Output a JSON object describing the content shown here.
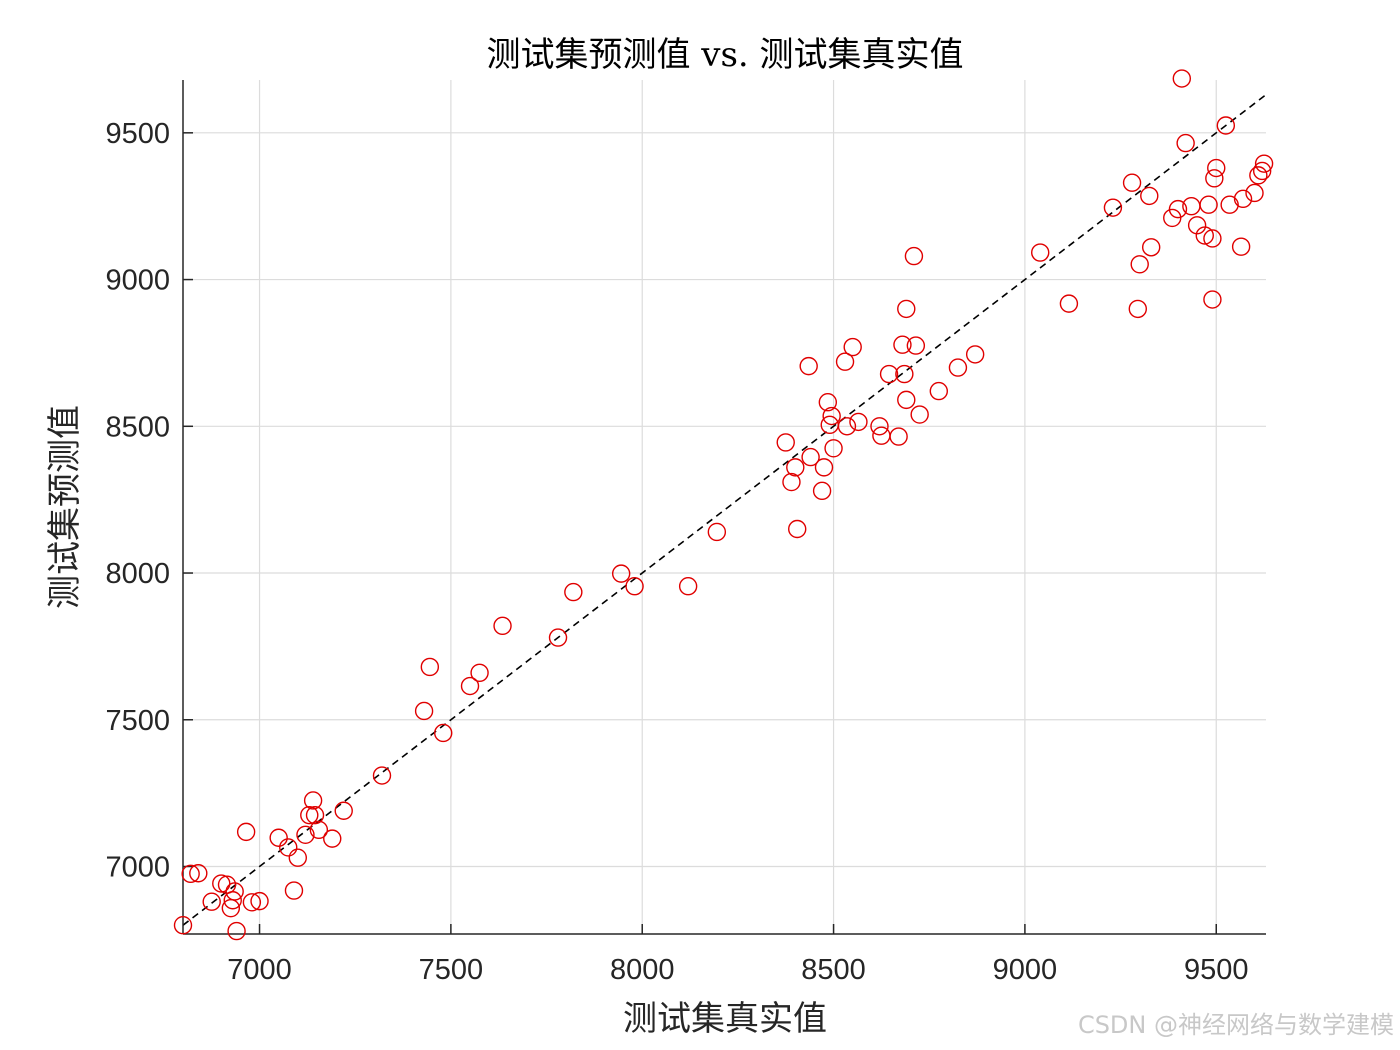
{
  "chart_data": {
    "type": "scatter",
    "title": "测试集预测值 vs. 测试集真实值",
    "xlabel": "测试集真实值",
    "ylabel": "测试集预测值",
    "xlim": [
      6800,
      9630
    ],
    "ylim": [
      6770,
      9680
    ],
    "x_ticks": [
      7000,
      7500,
      8000,
      8500,
      9000,
      9500
    ],
    "y_ticks": [
      7000,
      7500,
      8000,
      8500,
      9000,
      9500
    ],
    "grid": true,
    "reference_line": {
      "style": "dashed",
      "color": "#000000",
      "from": [
        6800,
        6800
      ],
      "to": [
        9630,
        9630
      ]
    },
    "series": [
      {
        "marker": "open-circle",
        "color": "#e00000",
        "points": [
          [
            6800,
            6800
          ],
          [
            6820,
            6975
          ],
          [
            6840,
            6977
          ],
          [
            6875,
            6880
          ],
          [
            6900,
            6942
          ],
          [
            6915,
            6938
          ],
          [
            6925,
            6858
          ],
          [
            6930,
            6885
          ],
          [
            6935,
            6915
          ],
          [
            6940,
            6780
          ],
          [
            6965,
            7118
          ],
          [
            6980,
            6878
          ],
          [
            7000,
            6882
          ],
          [
            7050,
            7098
          ],
          [
            7075,
            7065
          ],
          [
            7090,
            6918
          ],
          [
            7100,
            7030
          ],
          [
            7120,
            7108
          ],
          [
            7130,
            7175
          ],
          [
            7140,
            7225
          ],
          [
            7145,
            7175
          ],
          [
            7155,
            7125
          ],
          [
            7190,
            7095
          ],
          [
            7220,
            7190
          ],
          [
            7320,
            7310
          ],
          [
            7430,
            7530
          ],
          [
            7445,
            7680
          ],
          [
            7480,
            7455
          ],
          [
            7550,
            7615
          ],
          [
            7575,
            7660
          ],
          [
            7635,
            7820
          ],
          [
            7780,
            7780
          ],
          [
            7820,
            7935
          ],
          [
            7945,
            7998
          ],
          [
            7980,
            7955
          ],
          [
            8120,
            7955
          ],
          [
            8195,
            8140
          ],
          [
            8375,
            8445
          ],
          [
            8390,
            8310
          ],
          [
            8400,
            8360
          ],
          [
            8405,
            8150
          ],
          [
            8435,
            8705
          ],
          [
            8440,
            8395
          ],
          [
            8470,
            8280
          ],
          [
            8475,
            8360
          ],
          [
            8485,
            8582
          ],
          [
            8490,
            8505
          ],
          [
            8495,
            8535
          ],
          [
            8500,
            8425
          ],
          [
            8530,
            8720
          ],
          [
            8535,
            8500
          ],
          [
            8550,
            8770
          ],
          [
            8565,
            8515
          ],
          [
            8620,
            8500
          ],
          [
            8625,
            8468
          ],
          [
            8645,
            8678
          ],
          [
            8670,
            8465
          ],
          [
            8680,
            8778
          ],
          [
            8685,
            8678
          ],
          [
            8690,
            8900
          ],
          [
            8690,
            8590
          ],
          [
            8710,
            9080
          ],
          [
            8715,
            8775
          ],
          [
            8725,
            8540
          ],
          [
            8775,
            8620
          ],
          [
            8825,
            8700
          ],
          [
            8870,
            8745
          ],
          [
            9040,
            9092
          ],
          [
            9115,
            8918
          ],
          [
            9230,
            9245
          ],
          [
            9280,
            9330
          ],
          [
            9295,
            8900
          ],
          [
            9300,
            9052
          ],
          [
            9325,
            9285
          ],
          [
            9330,
            9110
          ],
          [
            9385,
            9210
          ],
          [
            9400,
            9240
          ],
          [
            9410,
            9685
          ],
          [
            9420,
            9465
          ],
          [
            9435,
            9250
          ],
          [
            9450,
            9185
          ],
          [
            9470,
            9150
          ],
          [
            9480,
            9255
          ],
          [
            9490,
            8932
          ],
          [
            9490,
            9140
          ],
          [
            9495,
            9345
          ],
          [
            9500,
            9380
          ],
          [
            9525,
            9525
          ],
          [
            9535,
            9255
          ],
          [
            9565,
            9112
          ],
          [
            9570,
            9275
          ],
          [
            9600,
            9295
          ],
          [
            9610,
            9355
          ],
          [
            9620,
            9370
          ],
          [
            9625,
            9395
          ]
        ]
      }
    ]
  },
  "watermark": "CSDN @神经网络与数学建模"
}
